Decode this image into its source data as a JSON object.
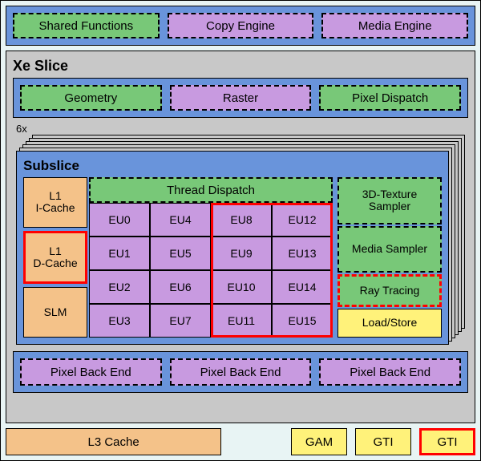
{
  "colors": {
    "bg": "#e8f4f4",
    "blue": "#6994db",
    "green": "#78c878",
    "purple": "#c89ae0",
    "orange": "#f4c289",
    "grey": "#c8c8c8",
    "yellow": "#fff27a",
    "red": "#ff0000"
  },
  "topRow": {
    "shared": "Shared Functions",
    "copy": "Copy Engine",
    "media": "Media Engine"
  },
  "slice": {
    "title": "Xe Slice",
    "geom": "Geometry",
    "raster": "Raster",
    "pixeldisp": "Pixel Dispatch",
    "count": "6x",
    "pbe": "Pixel Back End"
  },
  "subslice": {
    "title": "Subslice",
    "l1i": "L1\nI-Cache",
    "l1d": "L1\nD-Cache",
    "slm": "SLM",
    "thread": "Thread Dispatch",
    "eus": [
      "EU0",
      "EU4",
      "EU8",
      "EU12",
      "EU1",
      "EU5",
      "EU9",
      "EU13",
      "EU2",
      "EU6",
      "EU10",
      "EU14",
      "EU3",
      "EU7",
      "EU11",
      "EU15"
    ],
    "tex3d": "3D-Texture Sampler",
    "mediasamp": "Media Sampler",
    "rt": "Ray Tracing",
    "loadstore": "Load/Store"
  },
  "bottom": {
    "l3": "L3 Cache",
    "gam": "GAM",
    "gti": "GTI",
    "gti2": "GTI"
  }
}
